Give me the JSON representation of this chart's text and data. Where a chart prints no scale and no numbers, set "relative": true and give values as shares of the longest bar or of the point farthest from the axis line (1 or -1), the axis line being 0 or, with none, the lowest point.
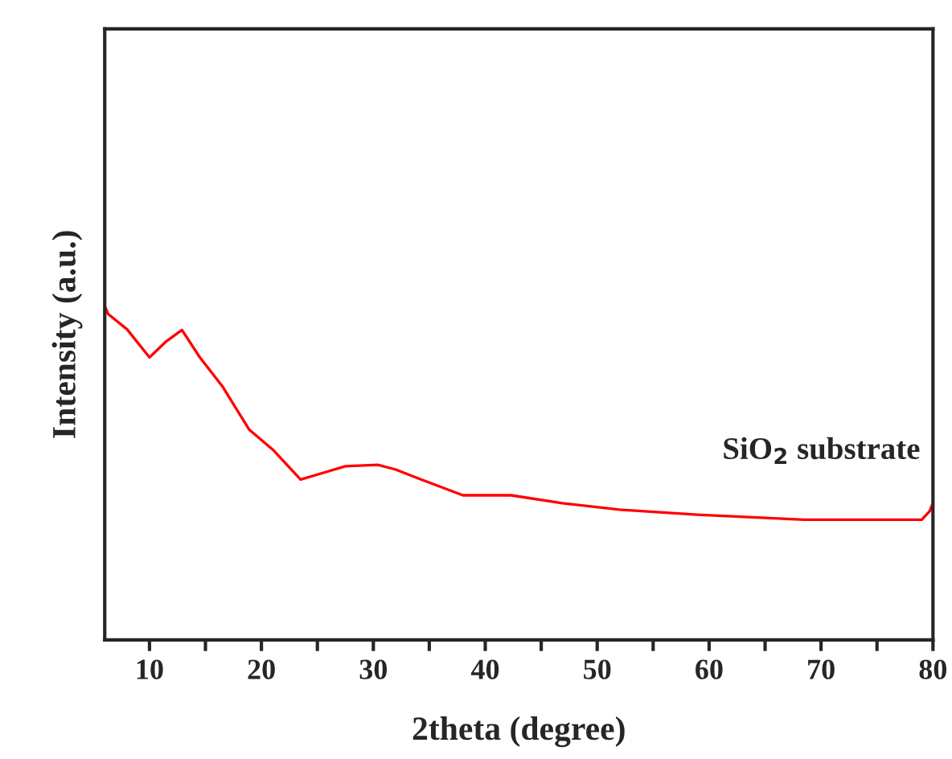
{
  "chart_data": {
    "type": "line",
    "relative": true,
    "xlabel": "2theta (degree)",
    "ylabel": "Intensity (a.u.)",
    "x": [
      6,
      6.3,
      8,
      10,
      11.5,
      12.9,
      14.5,
      16.5,
      18.9,
      21.1,
      23.5,
      25,
      27.5,
      30.4,
      32,
      34.3,
      38,
      42.3,
      46.9,
      52,
      58.9,
      68.5,
      75,
      79,
      79.7,
      80
    ],
    "series": [
      {
        "color": "#ff0000",
        "values": [
          1.0,
          0.976,
          0.93,
          0.846,
          0.894,
          0.928,
          0.846,
          0.76,
          0.63,
          0.567,
          0.48,
          0.495,
          0.52,
          0.524,
          0.51,
          0.48,
          0.433,
          0.433,
          0.409,
          0.39,
          0.375,
          0.36,
          0.36,
          0.36,
          0.385,
          0.41
        ]
      }
    ],
    "xlim": [
      6,
      80
    ],
    "xticks": [
      10,
      {
        "value": 15,
        "label": null
      },
      20,
      {
        "value": 25,
        "label": null
      },
      30,
      {
        "value": 35,
        "label": null
      },
      40,
      {
        "value": 45,
        "label": null
      },
      50,
      {
        "value": 55,
        "label": null
      },
      60,
      {
        "value": 65,
        "label": null
      },
      70,
      {
        "value": 75,
        "label": null
      },
      80
    ],
    "annotations": [
      "SiO$_{2}$ substrate"
    ],
    "grid": false,
    "legend": false,
    "marker": "none",
    "line_style": "solid"
  }
}
